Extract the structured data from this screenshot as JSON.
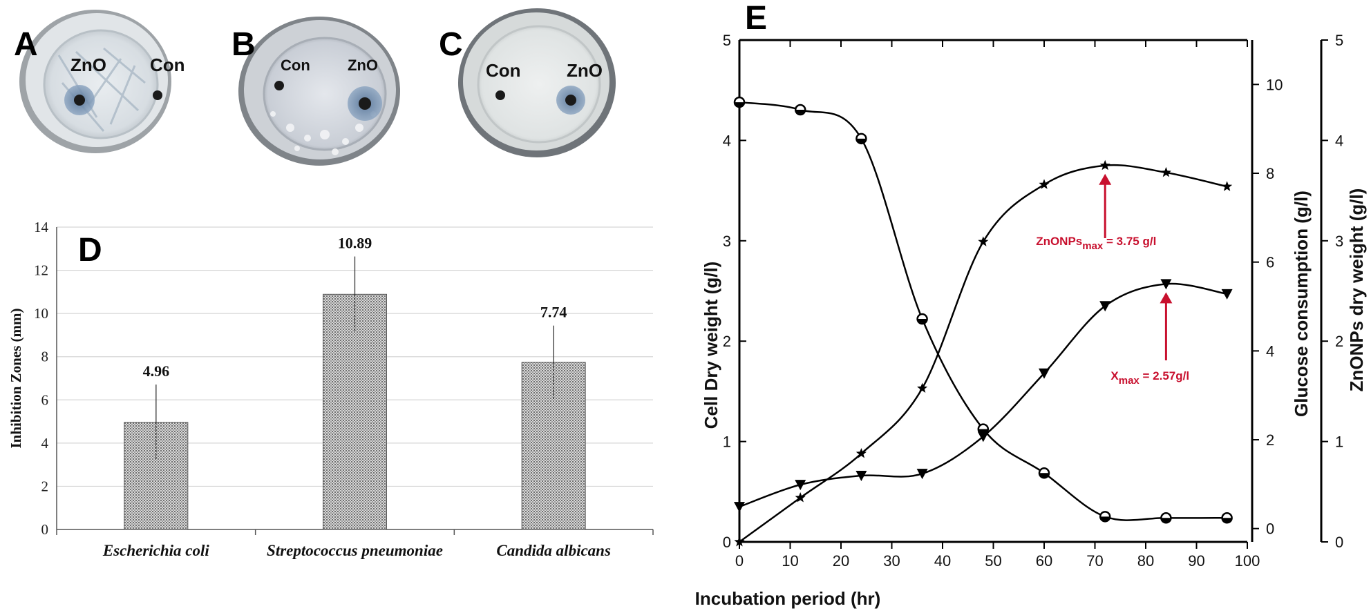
{
  "panels": {
    "A": {
      "letter": "A",
      "labels": [
        "ZnO",
        "Con"
      ]
    },
    "B": {
      "letter": "B",
      "labels": [
        "Con",
        "ZnO"
      ]
    },
    "C": {
      "letter": "C",
      "labels": [
        "Con",
        "ZnO"
      ]
    },
    "D": {
      "letter": "D"
    },
    "E": {
      "letter": "E"
    }
  },
  "colors": {
    "annotation": "#c8102e",
    "bar": "#b9b9b9",
    "line": "#000000"
  },
  "chart_data": [
    {
      "panel": "D",
      "type": "bar",
      "categories": [
        "Escherichia coli",
        "Streptococcus pneumoniae",
        "Candida albicans"
      ],
      "values": [
        4.96,
        10.89,
        7.74
      ],
      "value_labels": [
        "4.96",
        "10.89",
        "7.74"
      ],
      "error": [
        1.75,
        1.75,
        1.7
      ],
      "ylabel": "Inhibition Zones (mm)",
      "ylim": [
        0,
        14
      ],
      "yticks": [
        "0",
        "2",
        "4",
        "6",
        "8",
        "10",
        "12",
        "14"
      ],
      "grid": true
    },
    {
      "panel": "E",
      "type": "line",
      "xlabel": "Incubation period (hr)",
      "xlim": [
        0,
        100
      ],
      "xticks": [
        "0",
        "10",
        "20",
        "30",
        "40",
        "50",
        "60",
        "70",
        "80",
        "90",
        "100"
      ],
      "x": [
        0,
        12,
        24,
        36,
        48,
        60,
        72,
        84,
        96
      ],
      "series": [
        {
          "axis": "left",
          "marker": "triangle-down",
          "values": [
            0.35,
            0.57,
            0.66,
            0.68,
            1.05,
            1.68,
            2.35,
            2.57,
            2.47
          ]
        },
        {
          "axis": "middle",
          "marker": "circle",
          "values": [
            9.6,
            9.43,
            8.78,
            4.72,
            2.24,
            1.25,
            0.27,
            0.24,
            0.24
          ]
        },
        {
          "axis": "right",
          "marker": "star",
          "values": [
            0,
            0.44,
            0.88,
            1.53,
            2.99,
            3.56,
            3.75,
            3.68,
            3.54
          ]
        }
      ],
      "left_axis": {
        "label": "Cell Dry weight (g/l)",
        "lim": [
          0,
          5
        ],
        "ticks": [
          "0",
          "1",
          "2",
          "3",
          "4",
          "5"
        ]
      },
      "middle_axis": {
        "label": "Glucose consumption (g/l)",
        "lim": [
          -0.3,
          11
        ],
        "ticks": [
          "0",
          "2",
          "4",
          "6",
          "8",
          "10"
        ]
      },
      "right_axis": {
        "label": "ZnONPs dry weight (g/l)",
        "lim": [
          0,
          5
        ],
        "ticks": [
          "0",
          "1",
          "2",
          "3",
          "4",
          "5"
        ]
      },
      "annotations": [
        {
          "base": "ZnONPs",
          "sub": "max",
          "rest": " = 3.75 g/l",
          "x": 72,
          "y": 3.75
        },
        {
          "base": "X",
          "sub": "max",
          "rest": " = 2.57g/l",
          "x": 84,
          "y": 2.57
        }
      ]
    }
  ]
}
